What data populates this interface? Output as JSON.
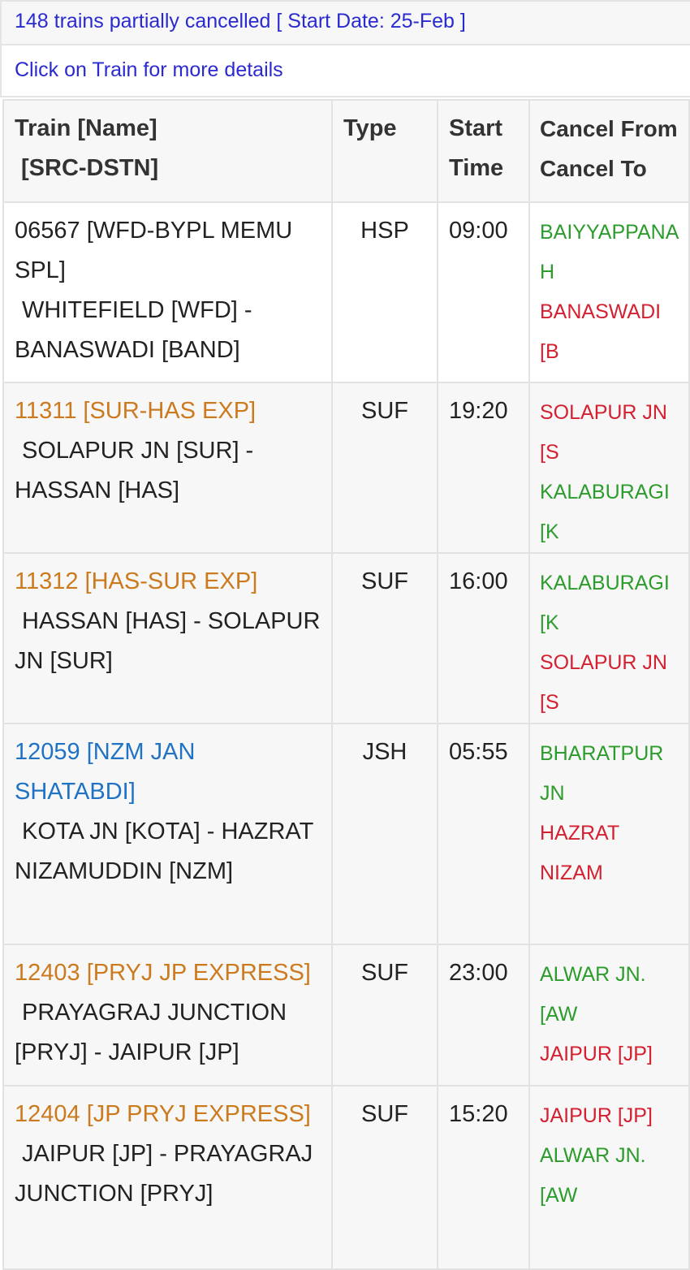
{
  "summary": "148 trains partially cancelled [ Start Date: 25-Feb ]",
  "hint": "Click on Train for more details",
  "colors": {
    "link": "#2a2ad0",
    "superfast": "#cc7a1e",
    "jan_shatabdi": "#1f72c4",
    "cancel_from_green": "#2c9c2c",
    "cancel_to_red": "#d42030"
  },
  "table": {
    "headers": {
      "train_line1": "Train [Name]",
      "train_line2": "[SRC-DSTN]",
      "type": "Type",
      "start_line1": "Start",
      "start_line2": "Time",
      "cancel_line1": "Cancel From",
      "cancel_line2": "Cancel To"
    },
    "rows": [
      {
        "train": "06567 [WFD-BYPL MEMU SPL]",
        "route": "WHITEFIELD [WFD] - BANASWADI [BAND]",
        "type": "HSP",
        "start": "09:00",
        "first": "BAIYYAPPANAH",
        "second": "BANASWADI [B",
        "first_color": "green",
        "second_color": "red",
        "train_color": "black"
      },
      {
        "train": "11311 [SUR-HAS EXP]",
        "route": "SOLAPUR JN [SUR] - HASSAN [HAS]",
        "type": "SUF",
        "start": "19:20",
        "first": "SOLAPUR JN [S",
        "second": "KALABURAGI [K",
        "first_color": "red",
        "second_color": "green",
        "train_color": "orange"
      },
      {
        "train": "11312 [HAS-SUR EXP]",
        "route": "HASSAN [HAS] - SOLAPUR JN [SUR]",
        "type": "SUF",
        "start": "16:00",
        "first": "KALABURAGI [K",
        "second": "SOLAPUR JN [S",
        "first_color": "green",
        "second_color": "red",
        "train_color": "orange"
      },
      {
        "train": "12059 [NZM JAN SHATABDI]",
        "route": "KOTA JN [KOTA] - HAZRAT NIZAMUDDIN [NZM]",
        "type": "JSH",
        "start": "05:55",
        "first": "BHARATPUR JN",
        "second": "HAZRAT NIZAM",
        "first_color": "green",
        "second_color": "red",
        "train_color": "blue"
      },
      {
        "train": "12403 [PRYJ JP EXPRESS]",
        "route": "PRAYAGRAJ JUNCTION [PRYJ] - JAIPUR [JP]",
        "type": "SUF",
        "start": "23:00",
        "first": "ALWAR JN. [AW",
        "second": "JAIPUR [JP]",
        "first_color": "green",
        "second_color": "red",
        "train_color": "orange"
      },
      {
        "train": "12404 [JP PRYJ EXPRESS]",
        "route": "JAIPUR [JP] - PRAYAGRAJ JUNCTION [PRYJ]",
        "type": "SUF",
        "start": "15:20",
        "first": "JAIPUR [JP]",
        "second": "ALWAR JN. [AW",
        "first_color": "red",
        "second_color": "green",
        "train_color": "orange"
      }
    ]
  }
}
